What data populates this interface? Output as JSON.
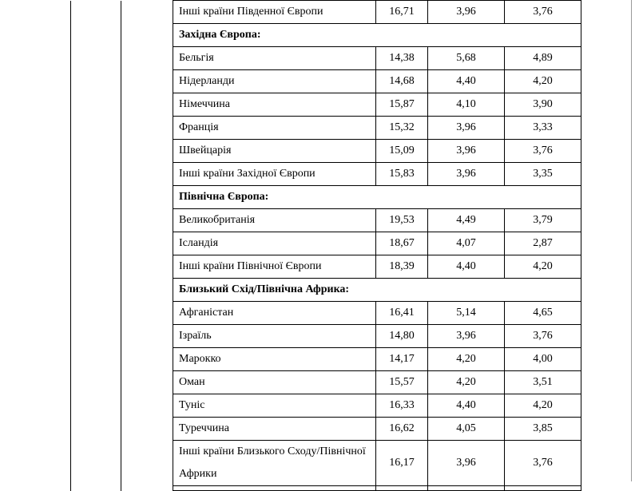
{
  "table": {
    "rows": [
      {
        "kind": "data",
        "name": "Інші країни Південної Європи",
        "v1": "16,71",
        "v2": "3,96",
        "v3": "3,76"
      },
      {
        "kind": "header",
        "name": "Західна Європа:"
      },
      {
        "kind": "data",
        "name": "Бельгія",
        "v1": "14,38",
        "v2": "5,68",
        "v3": "4,89"
      },
      {
        "kind": "data",
        "name": "Нідерланди",
        "v1": "14,68",
        "v2": "4,40",
        "v3": "4,20"
      },
      {
        "kind": "data",
        "name": "Німеччина",
        "v1": "15,87",
        "v2": "4,10",
        "v3": "3,90"
      },
      {
        "kind": "data",
        "name": "Франція",
        "v1": "15,32",
        "v2": "3,96",
        "v3": "3,33"
      },
      {
        "kind": "data",
        "name": "Швейцарія",
        "v1": "15,09",
        "v2": "3,96",
        "v3": "3,76"
      },
      {
        "kind": "data",
        "name": "Інші країни Західної Європи",
        "v1": "15,83",
        "v2": "3,96",
        "v3": "3,35"
      },
      {
        "kind": "header",
        "name": "Північна Європа:"
      },
      {
        "kind": "data",
        "name": "Великобританія",
        "v1": "19,53",
        "v2": "4,49",
        "v3": "3,79"
      },
      {
        "kind": "data",
        "name": "Ісландія",
        "v1": "18,67",
        "v2": "4,07",
        "v3": "2,87"
      },
      {
        "kind": "data",
        "name": "Інші країни Північної Європи",
        "v1": "18,39",
        "v2": "4,40",
        "v3": "4,20"
      },
      {
        "kind": "header",
        "name": "Близький Схід/Північна Африка:"
      },
      {
        "kind": "data",
        "name": "Афганістан",
        "v1": "16,41",
        "v2": "5,14",
        "v3": "4,65"
      },
      {
        "kind": "data",
        "name": "Ізраїль",
        "v1": "14,80",
        "v2": "3,96",
        "v3": "3,76"
      },
      {
        "kind": "data",
        "name": "Марокко",
        "v1": "14,17",
        "v2": "4,20",
        "v3": "4,00"
      },
      {
        "kind": "data",
        "name": "Оман",
        "v1": "15,57",
        "v2": "4,20",
        "v3": "3,51"
      },
      {
        "kind": "data",
        "name": "Туніс",
        "v1": "16,33",
        "v2": "4,40",
        "v3": "4,20"
      },
      {
        "kind": "data",
        "name": "Туреччина",
        "v1": "16,62",
        "v2": "4,05",
        "v3": "3,85"
      },
      {
        "kind": "tall",
        "name": "Інші країни Близького Сходу/Північної Африки",
        "v1": "16,17",
        "v2": "3,96",
        "v3": "3,76"
      }
    ]
  }
}
